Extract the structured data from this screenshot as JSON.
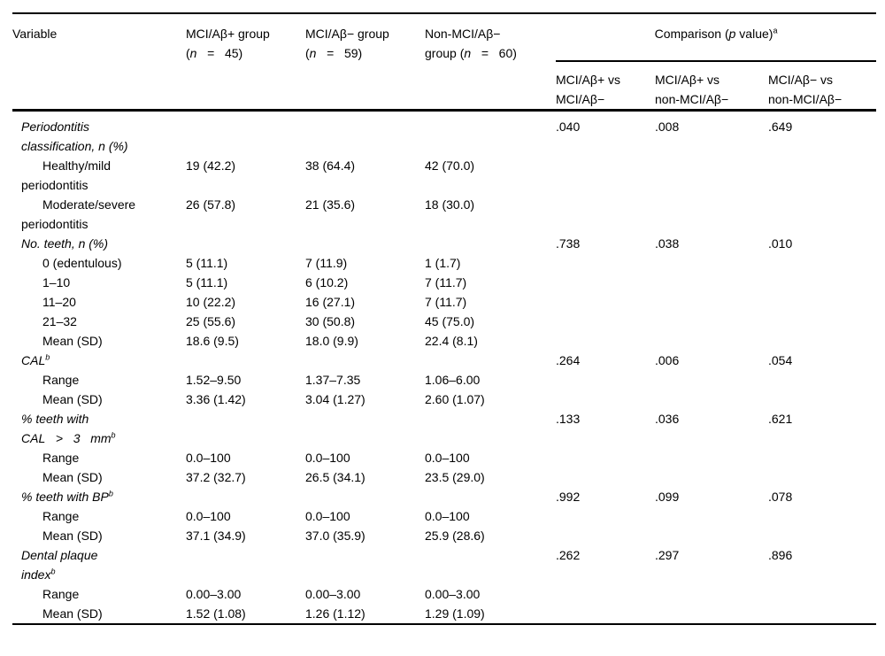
{
  "table": {
    "header": {
      "variable": "Variable",
      "groups": [
        {
          "line1": "MCI/Aβ+ group",
          "parts": [
            "(",
            "n",
            "   =   ",
            "45)"
          ]
        },
        {
          "line1": "MCI/Aβ− group",
          "parts": [
            "(",
            "n",
            "   =   ",
            "59)"
          ]
        },
        {
          "line1": "Non-MCI/Aβ−",
          "parts": [
            "group (",
            "n",
            "   =   ",
            "60)"
          ]
        }
      ],
      "comparison": {
        "pre": "Comparison (",
        "p": "p",
        "post": " value)",
        "sup": "a"
      },
      "subs": [
        {
          "line1": "MCI/Aβ+ vs",
          "line2": "MCI/Aβ−"
        },
        {
          "line1": "MCI/Aβ+ vs",
          "line2": "non-MCI/Aβ−"
        },
        {
          "line1": "MCI/Aβ− vs",
          "line2": "non-MCI/Aβ−"
        }
      ]
    },
    "rows": [
      {
        "type": "section",
        "lines": [
          {
            "text": "Periodontitis"
          },
          {
            "text": "classification, n (%)"
          }
        ],
        "p": [
          ".040",
          ".008",
          ".649"
        ]
      },
      {
        "type": "data",
        "lines": [
          {
            "text": "Healthy/mild",
            "indent": true
          },
          {
            "text": "periodontitis"
          }
        ],
        "values": [
          "19 (42.2)",
          "38 (64.4)",
          "42 (70.0)"
        ]
      },
      {
        "type": "data",
        "lines": [
          {
            "text": "Moderate/severe",
            "indent": true
          },
          {
            "text": "periodontitis"
          }
        ],
        "values": [
          "26 (57.8)",
          "21 (35.6)",
          "18 (30.0)"
        ]
      },
      {
        "type": "section",
        "lines": [
          {
            "text": "No. teeth, n (%)"
          }
        ],
        "p": [
          ".738",
          ".038",
          ".010"
        ]
      },
      {
        "type": "data",
        "lines": [
          {
            "text": "0 (edentulous)",
            "indent": true
          }
        ],
        "values": [
          "5 (11.1)",
          "7 (11.9)",
          "1 (1.7)"
        ]
      },
      {
        "type": "data",
        "lines": [
          {
            "text": "1–10",
            "indent": true
          }
        ],
        "values": [
          "5 (11.1)",
          "6 (10.2)",
          "7 (11.7)"
        ]
      },
      {
        "type": "data",
        "lines": [
          {
            "text": "11–20",
            "indent": true
          }
        ],
        "values": [
          "10 (22.2)",
          "16 (27.1)",
          "7 (11.7)"
        ]
      },
      {
        "type": "data",
        "lines": [
          {
            "text": "21–32",
            "indent": true
          }
        ],
        "values": [
          "25 (55.6)",
          "30 (50.8)",
          "45 (75.0)"
        ]
      },
      {
        "type": "data",
        "lines": [
          {
            "text": "Mean (SD)",
            "indent": true
          }
        ],
        "values": [
          "18.6 (9.5)",
          "18.0 (9.9)",
          "22.4 (8.1)"
        ]
      },
      {
        "type": "section",
        "lines": [
          {
            "text": "CAL",
            "sup": "b"
          }
        ],
        "p": [
          ".264",
          ".006",
          ".054"
        ]
      },
      {
        "type": "data",
        "lines": [
          {
            "text": "Range",
            "indent": true
          }
        ],
        "values": [
          "1.52–9.50",
          "1.37–7.35",
          "1.06–6.00"
        ]
      },
      {
        "type": "data",
        "lines": [
          {
            "text": "Mean (SD)",
            "indent": true
          }
        ],
        "values": [
          "3.36 (1.42)",
          "3.04 (1.27)",
          "2.60 (1.07)"
        ]
      },
      {
        "type": "section",
        "lines": [
          {
            "text": "% teeth with"
          },
          {
            "text": "CAL   >   3   mm",
            "sup": "b"
          }
        ],
        "p": [
          ".133",
          ".036",
          ".621"
        ]
      },
      {
        "type": "data",
        "lines": [
          {
            "text": "Range",
            "indent": true
          }
        ],
        "values": [
          "0.0–100",
          "0.0–100",
          "0.0–100"
        ]
      },
      {
        "type": "data",
        "lines": [
          {
            "text": "Mean (SD)",
            "indent": true
          }
        ],
        "values": [
          "37.2 (32.7)",
          "26.5 (34.1)",
          "23.5 (29.0)"
        ]
      },
      {
        "type": "section",
        "lines": [
          {
            "text": "% teeth with BP",
            "sup": "b"
          }
        ],
        "p": [
          ".992",
          ".099",
          ".078"
        ]
      },
      {
        "type": "data",
        "lines": [
          {
            "text": "Range",
            "indent": true
          }
        ],
        "values": [
          "0.0–100",
          "0.0–100",
          "0.0–100"
        ]
      },
      {
        "type": "data",
        "lines": [
          {
            "text": "Mean (SD)",
            "indent": true
          }
        ],
        "values": [
          "37.1 (34.9)",
          "37.0 (35.9)",
          "25.9 (28.6)"
        ]
      },
      {
        "type": "section",
        "lines": [
          {
            "text": "Dental plaque"
          },
          {
            "text": "index",
            "sup": "b"
          }
        ],
        "p": [
          ".262",
          ".297",
          ".896"
        ]
      },
      {
        "type": "data",
        "lines": [
          {
            "text": "Range",
            "indent": true
          }
        ],
        "values": [
          "0.00–3.00",
          "0.00–3.00",
          "0.00–3.00"
        ]
      },
      {
        "type": "data",
        "lines": [
          {
            "text": "Mean (SD)",
            "indent": true
          }
        ],
        "values": [
          "1.52 (1.08)",
          "1.26 (1.12)",
          "1.29 (1.09)"
        ]
      }
    ]
  }
}
